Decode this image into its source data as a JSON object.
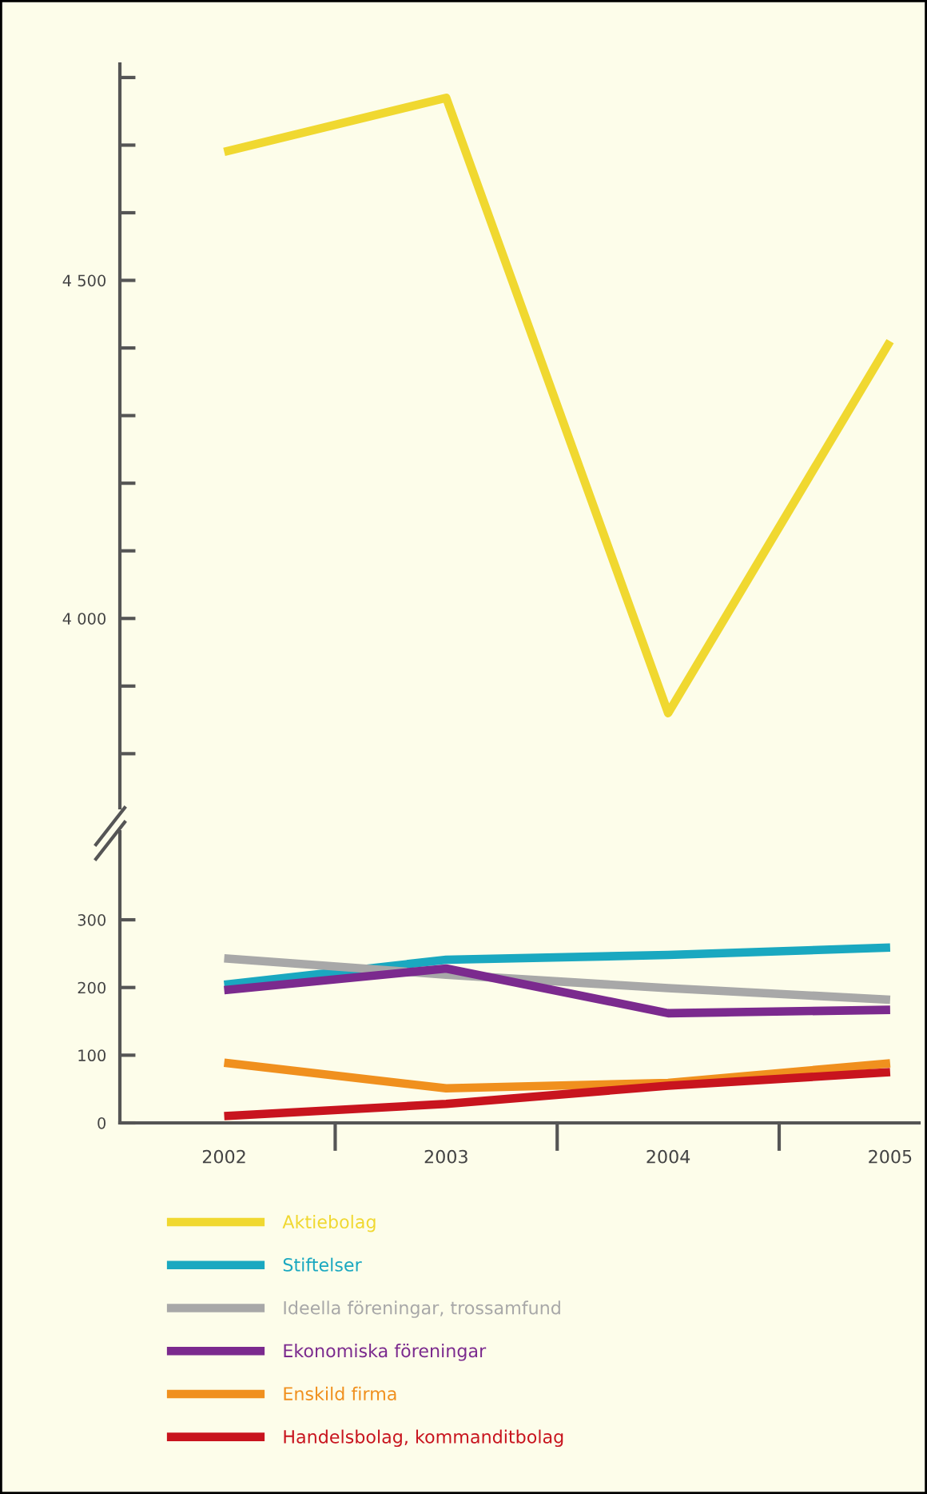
{
  "chart_data": [
    {
      "type": "line",
      "categories": [
        "2002",
        "2003",
        "2004",
        "2005"
      ],
      "ylim": [
        3720,
        4820
      ],
      "yticks": [
        {
          "value": 3800,
          "label": null
        },
        {
          "value": 3900,
          "label": null
        },
        {
          "value": 4000,
          "label": "4 000"
        },
        {
          "value": 4100,
          "label": null
        },
        {
          "value": 4200,
          "label": null
        },
        {
          "value": 4300,
          "label": null
        },
        {
          "value": 4400,
          "label": null
        },
        {
          "value": 4500,
          "label": "4 500"
        },
        {
          "value": 4600,
          "label": null
        },
        {
          "value": 4700,
          "label": null
        },
        {
          "value": 4800,
          "label": null
        }
      ],
      "tick_labels": "y",
      "grid": false,
      "legend": "bottom",
      "series": [
        {
          "name": "Aktiebolag",
          "color": "#f0d830",
          "values": [
            4690,
            4770,
            3860,
            4410
          ]
        }
      ]
    },
    {
      "type": "line",
      "categories": [
        "2002",
        "2003",
        "2004",
        "2005"
      ],
      "ylim": [
        0,
        430
      ],
      "yticks": [
        0,
        100,
        200,
        300
      ],
      "grid": false,
      "legend": "bottom",
      "series": [
        {
          "name": "Stiftelser",
          "color": "#1aa8c0",
          "values": [
            204,
            241,
            248,
            259
          ]
        },
        {
          "name": "Ideella föreningar, trossamfund",
          "color": "#a8a8a8",
          "values": [
            243,
            219,
            199,
            182
          ]
        },
        {
          "name": "Ekonomiska föreningar",
          "color": "#7b2a8e",
          "values": [
            196,
            228,
            162,
            167
          ]
        },
        {
          "name": "Enskild firma",
          "color": "#f0901e",
          "values": [
            89,
            51,
            59,
            88
          ]
        },
        {
          "name": "Handelsbolag, kommanditbolag",
          "color": "#c8141e",
          "values": [
            10,
            28,
            55,
            75
          ]
        }
      ]
    }
  ]
}
